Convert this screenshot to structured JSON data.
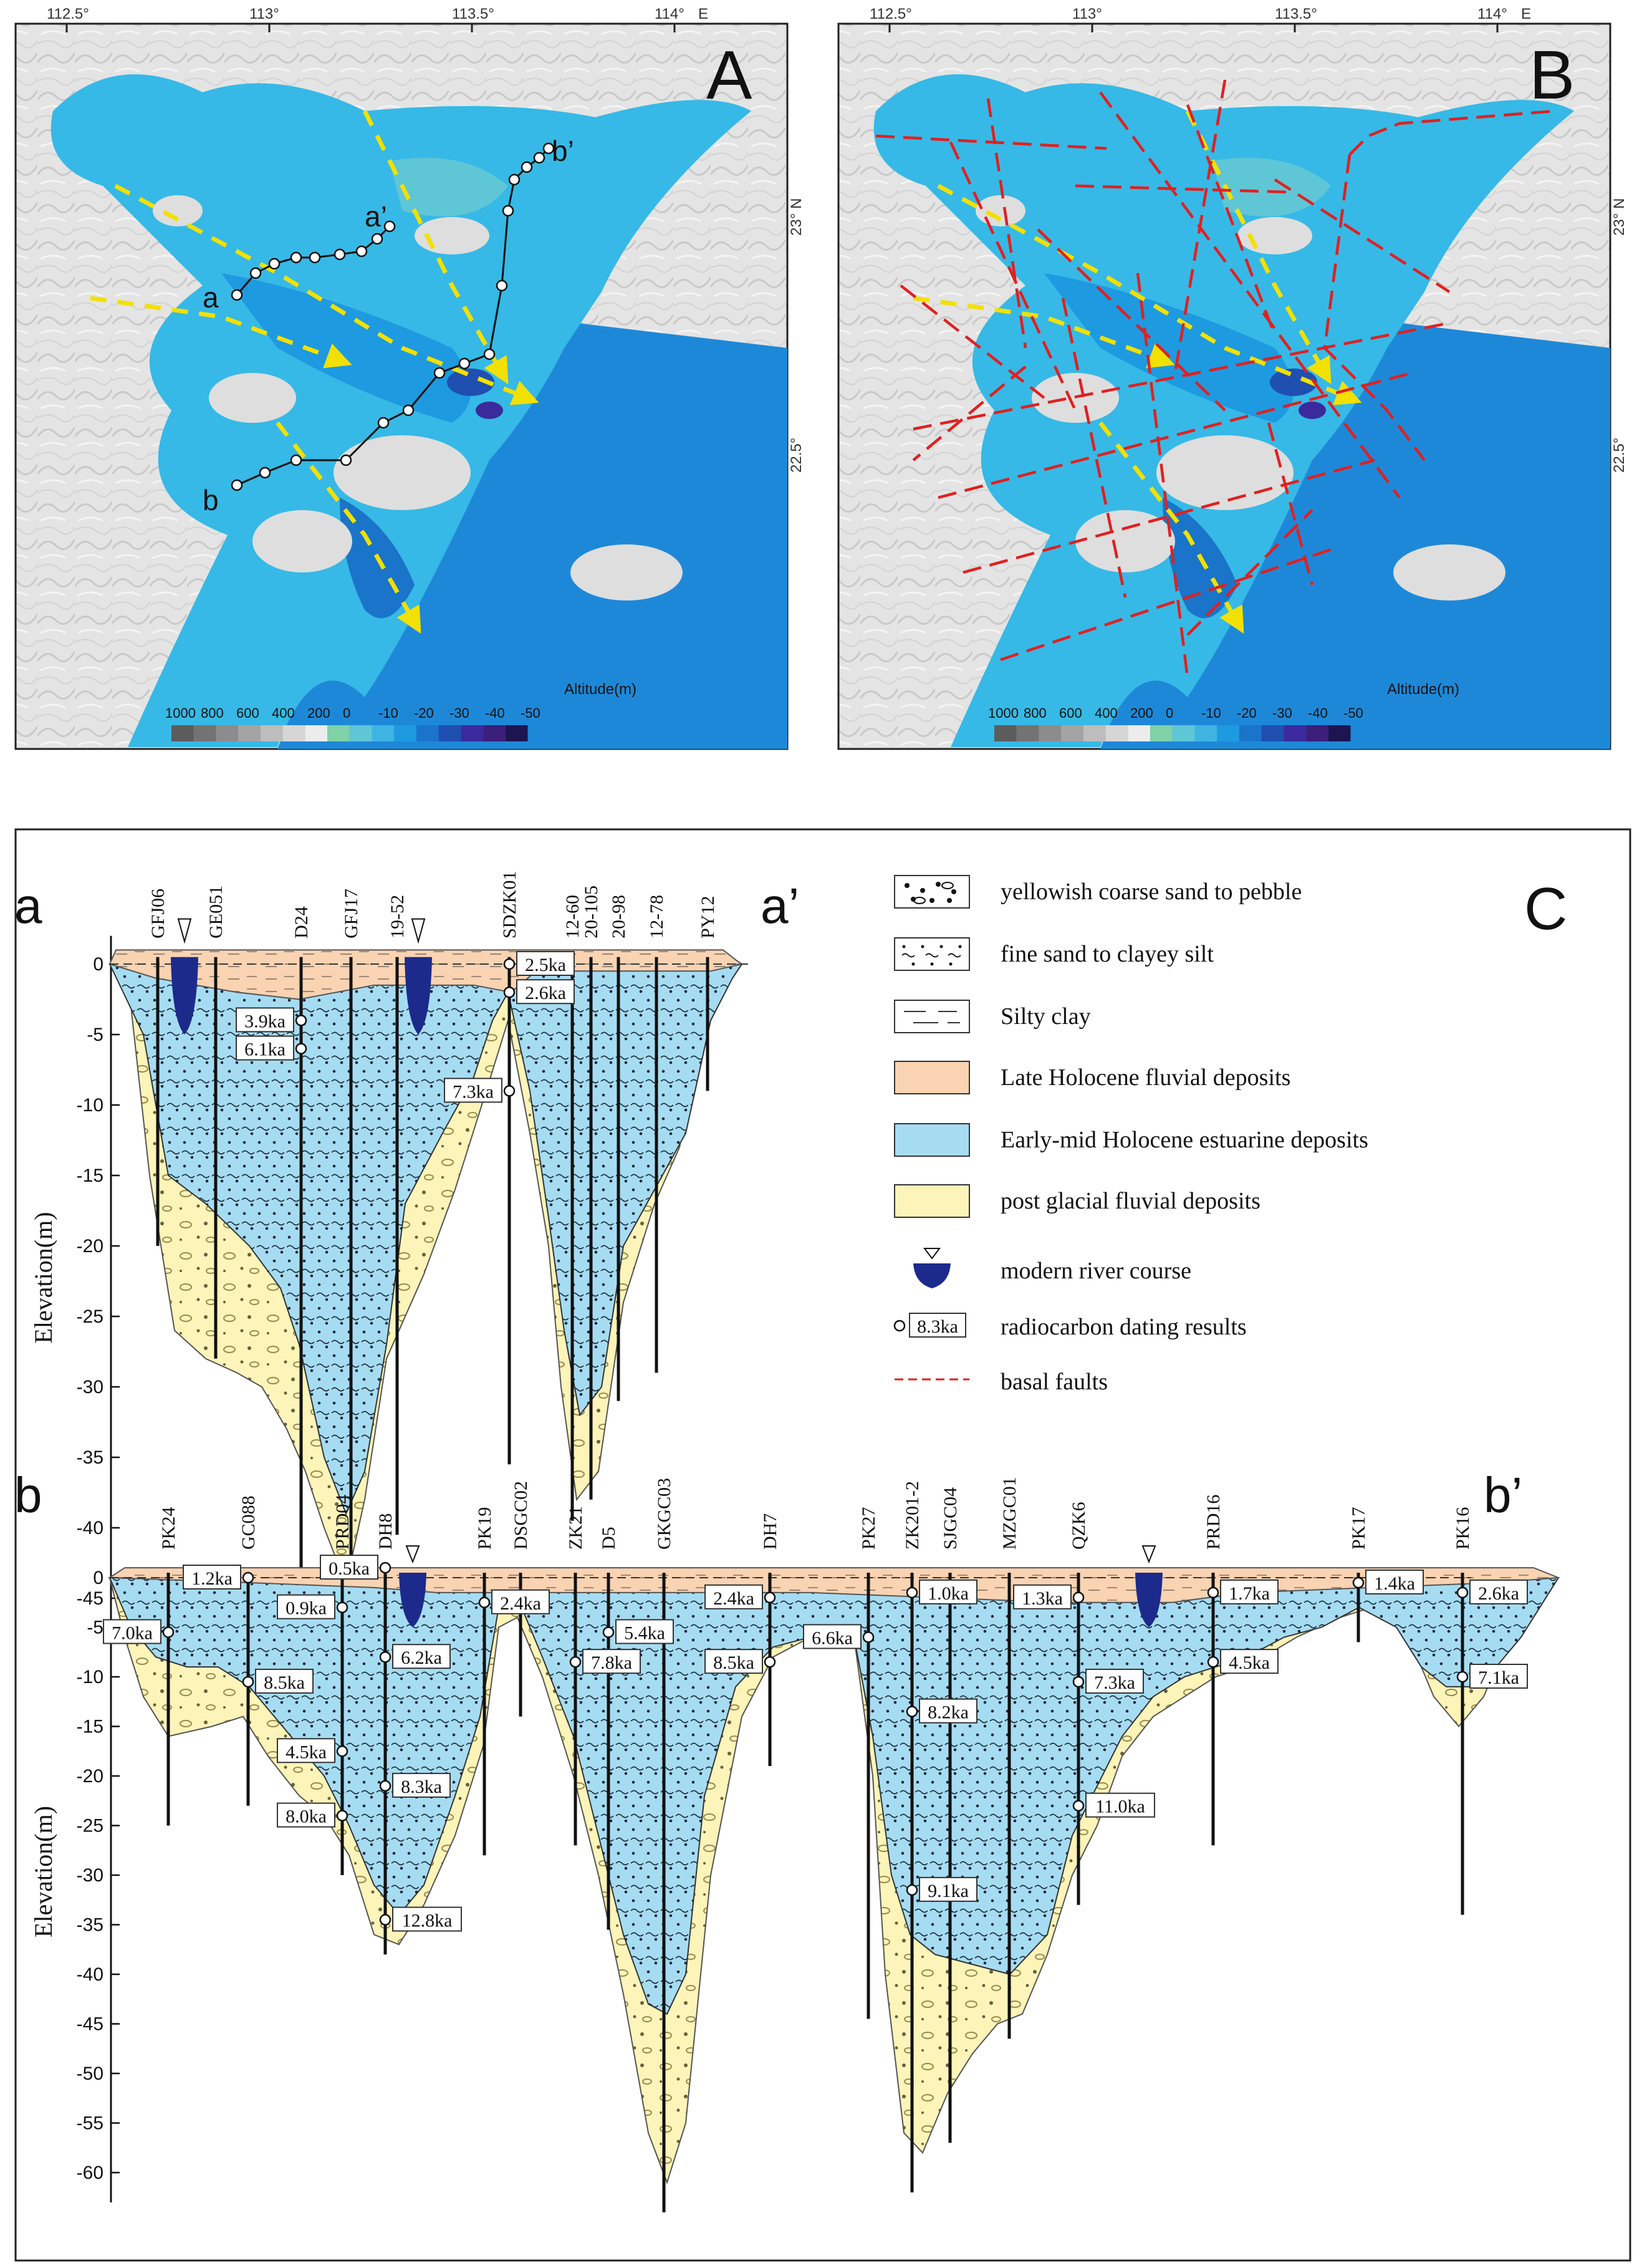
{
  "maps": {
    "A": {
      "letter": "A",
      "lon_ticks": [
        "112.5°",
        "113°",
        "113.5°",
        "114°",
        "E"
      ],
      "lat_ticks": [
        "23° N",
        "22.5°"
      ],
      "section_labels": [
        "a",
        "a’",
        "b",
        "b’"
      ],
      "legend_title": "Altitude(m)",
      "legend_values": [
        "1000",
        "800",
        "600",
        "400",
        "200",
        "0",
        "-10",
        "-20",
        "-30",
        "-40",
        "-50"
      ]
    },
    "B": {
      "letter": "B",
      "lon_ticks": [
        "112.5°",
        "113°",
        "113.5°",
        "114°",
        "E"
      ],
      "lat_ticks": [
        "23° N",
        "22.5°"
      ],
      "legend_title": "Altitude(m)",
      "legend_values": [
        "1000",
        "800",
        "600",
        "400",
        "200",
        "0",
        "-10",
        "-20",
        "-30",
        "-40",
        "-50"
      ]
    }
  },
  "colorscale": [
    "#5c5c5c",
    "#737373",
    "#8c8c8c",
    "#a4a4a4",
    "#bdbdbd",
    "#d6d6d6",
    "#ececec",
    "#7fd1a8",
    "#5fc6d6",
    "#3fb4e3",
    "#1e9ae0",
    "#1a74c9",
    "#1f4fb0",
    "#3a2a9e",
    "#3b1f7a",
    "#1d1550"
  ],
  "panel_c": {
    "letter": "C",
    "y_axis_label": "Elevation(m)",
    "section_a": {
      "start": "a",
      "end": "a’",
      "y_ticks": [
        0,
        -5,
        -10,
        -15,
        -20,
        -25,
        -30,
        -35,
        -40,
        -45
      ],
      "boreholes": [
        {
          "name": "GFJ06",
          "depth": -20
        },
        {
          "name": "GE051",
          "depth": -28
        },
        {
          "name": "D24",
          "depth": -47.5
        },
        {
          "name": "GFJ17",
          "depth": -45
        },
        {
          "name": "19-52",
          "depth": -40.5
        },
        {
          "name": "SDZK01",
          "depth": -35.5
        },
        {
          "name": "12-60",
          "depth": -39.5
        },
        {
          "name": "20-105",
          "depth": -38
        },
        {
          "name": "20-98",
          "depth": -31
        },
        {
          "name": "12-78",
          "depth": -29
        },
        {
          "name": "PY12",
          "depth": -9
        }
      ],
      "dates": [
        {
          "text": "2.5ka",
          "elev": 0
        },
        {
          "text": "2.6ka",
          "elev": -2
        },
        {
          "text": "3.9ka",
          "elev": -4
        },
        {
          "text": "6.1ka",
          "elev": -6
        },
        {
          "text": "7.3ka",
          "elev": -9
        }
      ]
    },
    "section_b": {
      "start": "b",
      "end": "b’",
      "y_ticks": [
        0,
        -5,
        -10,
        -15,
        -20,
        -25,
        -30,
        -35,
        -40,
        -45,
        -50,
        -55,
        -60
      ],
      "boreholes": [
        {
          "name": "PK24",
          "depth": -25
        },
        {
          "name": "GC088",
          "depth": -23
        },
        {
          "name": "PRD04",
          "depth": -30
        },
        {
          "name": "DH8",
          "depth": -38
        },
        {
          "name": "PK19",
          "depth": -28
        },
        {
          "name": "DSGC02",
          "depth": -14
        },
        {
          "name": "ZK21",
          "depth": -27
        },
        {
          "name": "D5",
          "depth": -35.5
        },
        {
          "name": "GKGC03",
          "depth": -64
        },
        {
          "name": "DH7",
          "depth": -19
        },
        {
          "name": "PK27",
          "depth": -44.5
        },
        {
          "name": "ZK201-2",
          "depth": -62
        },
        {
          "name": "SJGC04",
          "depth": -57
        },
        {
          "name": "MZGC01",
          "depth": -46.5
        },
        {
          "name": "QZK6",
          "depth": -33
        },
        {
          "name": "PRD16",
          "depth": -27
        },
        {
          "name": "PK17",
          "depth": -6.5
        },
        {
          "name": "PK16",
          "depth": -34
        }
      ],
      "dates": [
        {
          "text": "0.5ka",
          "elev": 1
        },
        {
          "text": "1.2ka",
          "elev": 0
        },
        {
          "text": "0.9ka",
          "elev": -3
        },
        {
          "text": "7.0ka",
          "elev": -5.5
        },
        {
          "text": "2.4ka",
          "elev": -2.5
        },
        {
          "text": "6.2ka",
          "elev": -8
        },
        {
          "text": "8.5ka",
          "elev": -10.5
        },
        {
          "text": "4.5ka",
          "elev": -17.5
        },
        {
          "text": "8.3ka",
          "elev": -21
        },
        {
          "text": "8.0ka",
          "elev": -24
        },
        {
          "text": "12.8ka",
          "elev": -34.5
        },
        {
          "text": "5.4ka",
          "elev": -5.5
        },
        {
          "text": "7.8ka",
          "elev": -8.5
        },
        {
          "text": "2.4ka",
          "elev": -2
        },
        {
          "text": "8.5ka",
          "elev": -8.5
        },
        {
          "text": "6.6ka",
          "elev": -6
        },
        {
          "text": "1.0ka",
          "elev": -1.5
        },
        {
          "text": "8.2ka",
          "elev": -13.5
        },
        {
          "text": "9.1ka",
          "elev": -31.5
        },
        {
          "text": "1.3ka",
          "elev": -2
        },
        {
          "text": "7.3ka",
          "elev": -10.5
        },
        {
          "text": "11.0ka",
          "elev": -23
        },
        {
          "text": "1.7ka",
          "elev": -1.5
        },
        {
          "text": "4.5ka",
          "elev": -8.5
        },
        {
          "text": "1.4ka",
          "elev": -0.5
        },
        {
          "text": "2.6ka",
          "elev": -1.5
        },
        {
          "text": "7.1ka",
          "elev": -10
        }
      ]
    },
    "legend": [
      {
        "key": "pebble",
        "label": "yellowish coarse sand to pebble"
      },
      {
        "key": "finesand",
        "label": "fine sand to clayey silt"
      },
      {
        "key": "silty",
        "label": "Silty clay"
      },
      {
        "key": "late",
        "label": "Late Holocene fluvial deposits",
        "color": "#f9d3b2"
      },
      {
        "key": "early",
        "label": "Early-mid Holocene estuarine deposits",
        "color": "#a6dcf2"
      },
      {
        "key": "post",
        "label": "post glacial fluvial deposits",
        "color": "#fcf4b8"
      },
      {
        "key": "river",
        "label": "modern river course",
        "color": "#1c2a8c"
      },
      {
        "key": "dating",
        "label": "radiocarbon dating results",
        "sample": "8.3ka"
      },
      {
        "key": "fault",
        "label": "basal faults",
        "color": "#e02020"
      }
    ]
  }
}
